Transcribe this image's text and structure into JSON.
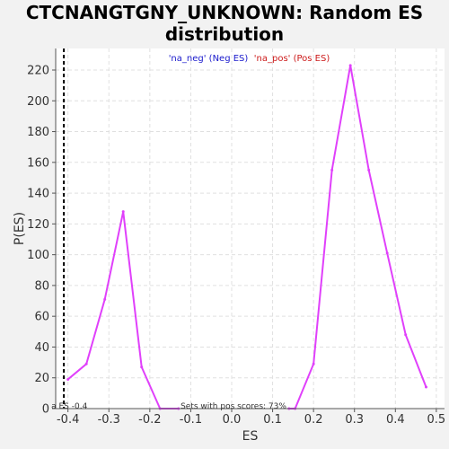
{
  "title": {
    "line1": "CTCNANGTGNY_UNKNOWN: Random ES",
    "line2": "distribution"
  },
  "chart_data": {
    "type": "line",
    "title": "CTCNANGTGNY_UNKNOWN: Random ES distribution",
    "xlabel": "ES",
    "ylabel": "P(ES)",
    "xlim": [
      -0.43,
      0.52
    ],
    "ylim": [
      0,
      234
    ],
    "x_ticks": [
      -0.4,
      -0.3,
      -0.2,
      -0.1,
      0.0,
      0.1,
      0.2,
      0.3,
      0.4,
      0.5
    ],
    "x_tick_labels": [
      "-0.4",
      "-0.3",
      "-0.2",
      "-0.1",
      "0.0",
      "0.1",
      "0.2",
      "0.3",
      "0.4",
      "0.5"
    ],
    "y_ticks": [
      0,
      20,
      40,
      60,
      80,
      100,
      120,
      140,
      160,
      180,
      200,
      220
    ],
    "y_tick_labels": [
      "0",
      "20",
      "40",
      "60",
      "80",
      "100",
      "120",
      "140",
      "160",
      "180",
      "200",
      "220"
    ],
    "grid": true,
    "series": [
      {
        "name": "'na_neg' (Neg ES)",
        "color": "#e040fb",
        "x": [
          -0.4,
          -0.355,
          -0.31,
          -0.265,
          -0.22,
          -0.175,
          -0.13
        ],
        "y": [
          19,
          29,
          71,
          128,
          27,
          0,
          0
        ]
      },
      {
        "name": "'na_pos' (Pos ES)",
        "color": "#e040fb",
        "x": [
          0.14,
          0.155,
          0.2,
          0.245,
          0.29,
          0.335,
          0.38,
          0.425,
          0.475
        ],
        "y": [
          0,
          0,
          29,
          155,
          223,
          155,
          101,
          48,
          14
        ]
      }
    ],
    "legend": {
      "placement": "top-center",
      "items": [
        {
          "label": "'na_neg' (Neg ES)",
          "color": "#1a1acc"
        },
        {
          "label": "'na_pos' (Pos ES)",
          "color": "#cc1a1a"
        }
      ]
    },
    "reference_line": {
      "x": -0.41,
      "style": "dashed",
      "color": "#000000",
      "label": "a ES -0.4"
    },
    "annotation": "Sets with pos scores: 73%"
  }
}
